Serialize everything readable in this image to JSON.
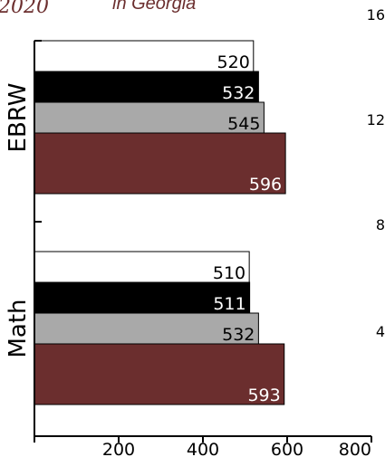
{
  "top_text": {
    "year": "2020",
    "subtitle": "in Georgia"
  },
  "right_edge_labels": [
    "16",
    "12",
    "8",
    "4"
  ],
  "chart_data": {
    "type": "bar",
    "orientation": "horizontal",
    "categories": [
      "EBRW",
      "Math"
    ],
    "series": [
      {
        "color": "#ffffff",
        "values": [
          520,
          510
        ]
      },
      {
        "color": "#000000",
        "values": [
          532,
          511
        ]
      },
      {
        "color": "#a9a9a9",
        "values": [
          545,
          532
        ]
      },
      {
        "color": "#6b2e2e",
        "values": [
          596,
          593
        ]
      }
    ],
    "label_colors": [
      "#000000",
      "#ffffff",
      "#000000",
      "#ffffff"
    ],
    "x_ticks": [
      200,
      400,
      600,
      800
    ],
    "xlim": [
      0,
      800
    ],
    "grid": false,
    "legend": "none"
  }
}
